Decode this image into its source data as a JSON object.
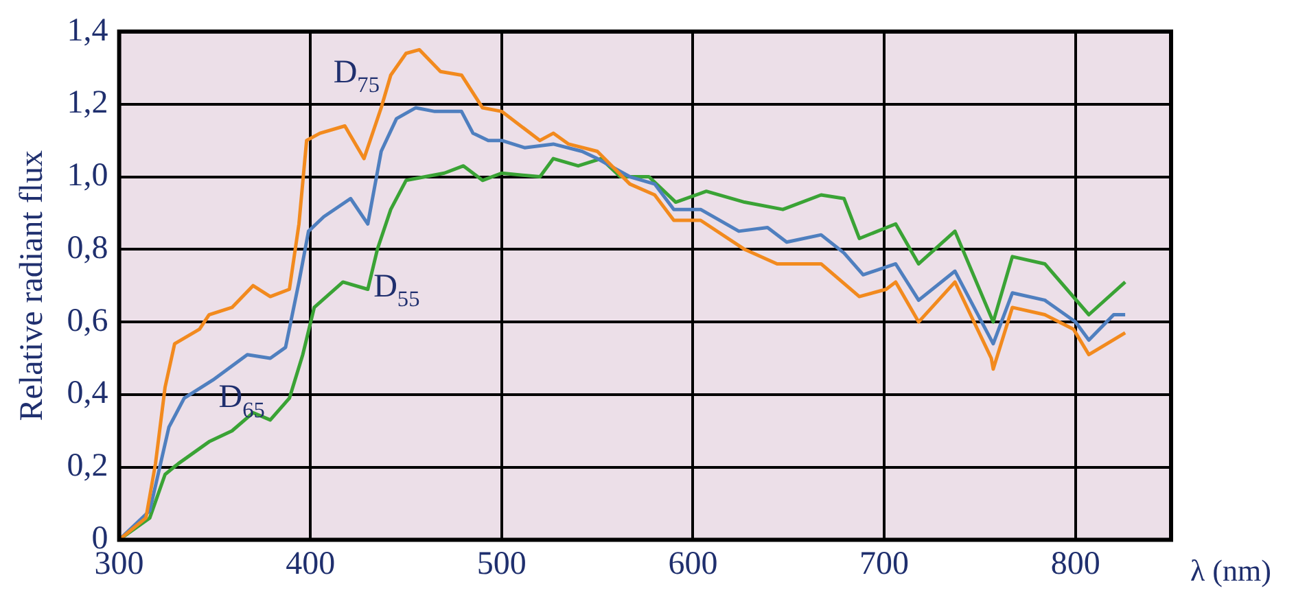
{
  "chart_data": {
    "type": "line",
    "xlabel": "λ (nm)",
    "ylabel": "Relative radiant flux",
    "xlim": [
      300,
      850
    ],
    "ylim": [
      0,
      1.4
    ],
    "xticks": [
      300,
      400,
      500,
      600,
      700,
      800
    ],
    "yticks": [
      0,
      {
        "value": 0.2,
        "label": "0,2"
      },
      {
        "value": 0.4,
        "label": "0,4"
      },
      {
        "value": 0.6,
        "label": "0,6"
      },
      {
        "value": 0.8,
        "label": "0,8"
      },
      {
        "value": 1.0,
        "label": "1,0"
      },
      {
        "value": 1.2,
        "label": "1,2"
      },
      {
        "value": 1.4,
        "label": "1,4"
      }
    ],
    "grid": true,
    "legend": false,
    "marker": "none",
    "line_style": "solid",
    "series": [
      {
        "name": "D$_{75}$",
        "color": "#f28a1e",
        "x": [
          300,
          314,
          319,
          324,
          329,
          342,
          347,
          359,
          370,
          379,
          389,
          394,
          398,
          405,
          418,
          428,
          437,
          442,
          450,
          457,
          468,
          479,
          490,
          500,
          520,
          527,
          535,
          550,
          567,
          580,
          590,
          604,
          627,
          644,
          667,
          687,
          701,
          706,
          718,
          737,
          756,
          757,
          767,
          784,
          799,
          807,
          826
        ],
        "values": [
          0,
          0.06,
          0.21,
          0.42,
          0.54,
          0.58,
          0.62,
          0.64,
          0.7,
          0.67,
          0.69,
          0.87,
          1.1,
          1.12,
          1.14,
          1.05,
          1.19,
          1.28,
          1.34,
          1.35,
          1.29,
          1.28,
          1.19,
          1.18,
          1.1,
          1.12,
          1.09,
          1.07,
          0.98,
          0.95,
          0.88,
          0.88,
          0.8,
          0.76,
          0.76,
          0.67,
          0.69,
          0.71,
          0.6,
          0.71,
          0.5,
          0.47,
          0.64,
          0.62,
          0.58,
          0.51,
          0.57
        ]
      },
      {
        "name": "D$_{65}$",
        "color": "#4f7fbf",
        "x": [
          300,
          316,
          326,
          334,
          349,
          367,
          379,
          387,
          394,
          399,
          407,
          421,
          430,
          437,
          445,
          455,
          465,
          479,
          485,
          493,
          500,
          512,
          527,
          542,
          550,
          567,
          580,
          590,
          604,
          624,
          639,
          649,
          667,
          679,
          689,
          706,
          718,
          737,
          757,
          767,
          784,
          800,
          807,
          820,
          826
        ],
        "values": [
          0,
          0.08,
          0.31,
          0.39,
          0.44,
          0.51,
          0.5,
          0.53,
          0.71,
          0.85,
          0.89,
          0.94,
          0.87,
          1.07,
          1.16,
          1.19,
          1.18,
          1.18,
          1.12,
          1.1,
          1.1,
          1.08,
          1.09,
          1.07,
          1.05,
          1.0,
          0.98,
          0.91,
          0.91,
          0.85,
          0.86,
          0.82,
          0.84,
          0.79,
          0.73,
          0.76,
          0.66,
          0.74,
          0.54,
          0.68,
          0.66,
          0.6,
          0.55,
          0.62,
          0.62
        ]
      },
      {
        "name": "D$_{55}$",
        "color": "#3aa335",
        "x": [
          300,
          316,
          324,
          331,
          347,
          359,
          370,
          379,
          389,
          396,
          402,
          417,
          430,
          435,
          442,
          450,
          460,
          470,
          480,
          490,
          500,
          520,
          527,
          540,
          552,
          562,
          577,
          591,
          607,
          627,
          647,
          667,
          679,
          687,
          706,
          718,
          737,
          757,
          767,
          784,
          807,
          826
        ],
        "values": [
          0,
          0.06,
          0.18,
          0.21,
          0.27,
          0.3,
          0.35,
          0.33,
          0.39,
          0.51,
          0.64,
          0.71,
          0.69,
          0.8,
          0.91,
          0.99,
          1.0,
          1.01,
          1.03,
          0.99,
          1.01,
          1.0,
          1.05,
          1.03,
          1.05,
          1.0,
          1.0,
          0.93,
          0.96,
          0.93,
          0.91,
          0.95,
          0.94,
          0.83,
          0.87,
          0.76,
          0.85,
          0.6,
          0.78,
          0.76,
          0.62,
          0.71
        ]
      }
    ]
  }
}
